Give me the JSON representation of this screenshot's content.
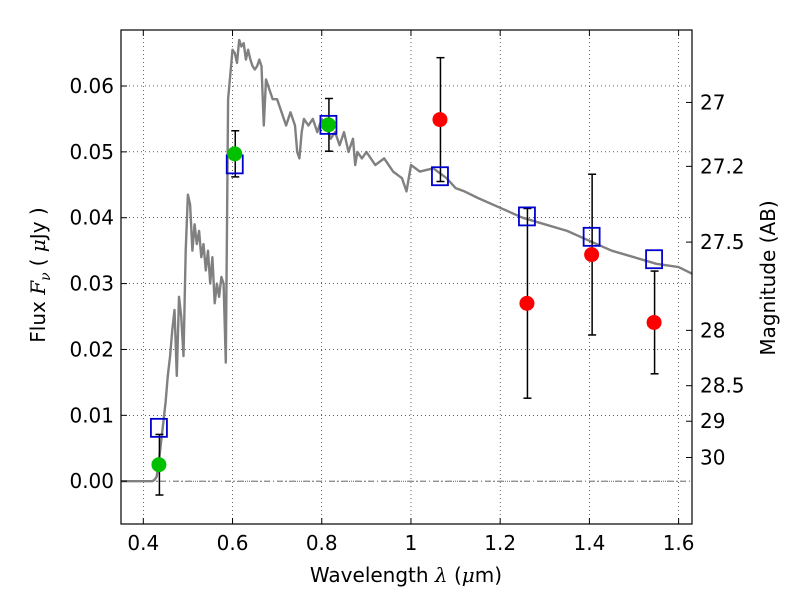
{
  "chart_data": {
    "type": "scatter",
    "title": "",
    "xlabel": {
      "prefix": "Wavelength ",
      "symbol": "λ",
      "unit_open": " (",
      "unit_mu": "μ",
      "unit_rest": "m)"
    },
    "ylabel": {
      "prefix": "Flux ",
      "symbol": "F",
      "sub": "ν",
      "unit_open": "( ",
      "unit_mu": "μ",
      "unit_rest": "Jy )"
    },
    "ylabel_right": "Magnitude (AB)",
    "xlim": [
      0.35,
      1.63
    ],
    "ylim": [
      -0.0065,
      0.0685
    ],
    "xticks": [
      0.4,
      0.6,
      0.8,
      1.0,
      1.2,
      1.4,
      1.6
    ],
    "xtick_labels": [
      "0.4",
      "0.6",
      "0.8",
      "1",
      "1.2",
      "1.4",
      "1.6"
    ],
    "yticks": [
      0.0,
      0.01,
      0.02,
      0.03,
      0.04,
      0.05,
      0.06
    ],
    "ytick_labels": [
      "0.00",
      "0.01",
      "0.02",
      "0.03",
      "0.04",
      "0.05",
      "0.06"
    ],
    "right_ticks": [
      {
        "label": "27",
        "flux": 0.0575
      },
      {
        "label": "27.2",
        "flux": 0.0478
      },
      {
        "label": "27.5",
        "flux": 0.0363
      },
      {
        "label": "28",
        "flux": 0.0229
      },
      {
        "label": "28.5",
        "flux": 0.0145
      },
      {
        "label": "29",
        "flux": 0.0091
      },
      {
        "label": "30",
        "flux": 0.0036
      }
    ],
    "grid": true,
    "model_spectrum": {
      "color": "#808080",
      "x": [
        0.35,
        0.42,
        0.425,
        0.43,
        0.435,
        0.44,
        0.445,
        0.45,
        0.455,
        0.46,
        0.465,
        0.47,
        0.475,
        0.48,
        0.485,
        0.49,
        0.495,
        0.5,
        0.505,
        0.51,
        0.515,
        0.52,
        0.525,
        0.53,
        0.535,
        0.54,
        0.545,
        0.55,
        0.555,
        0.56,
        0.565,
        0.57,
        0.575,
        0.58,
        0.585,
        0.59,
        0.6,
        0.605,
        0.61,
        0.615,
        0.62,
        0.625,
        0.63,
        0.635,
        0.64,
        0.645,
        0.65,
        0.655,
        0.66,
        0.665,
        0.67,
        0.675,
        0.68,
        0.69,
        0.7,
        0.71,
        0.72,
        0.73,
        0.74,
        0.745,
        0.75,
        0.755,
        0.76,
        0.77,
        0.78,
        0.79,
        0.8,
        0.81,
        0.82,
        0.83,
        0.84,
        0.85,
        0.86,
        0.87,
        0.875,
        0.88,
        0.89,
        0.9,
        0.92,
        0.94,
        0.96,
        0.98,
        0.99,
        1.0,
        1.02,
        1.05,
        1.08,
        1.1,
        1.12,
        1.15,
        1.2,
        1.25,
        1.3,
        1.35,
        1.4,
        1.45,
        1.5,
        1.55,
        1.6,
        1.63
      ],
      "y": [
        0.0,
        0.0,
        0.0002,
        0.0007,
        0.003,
        0.006,
        0.009,
        0.012,
        0.016,
        0.019,
        0.023,
        0.026,
        0.016,
        0.028,
        0.025,
        0.019,
        0.035,
        0.0435,
        0.042,
        0.035,
        0.039,
        0.036,
        0.038,
        0.034,
        0.036,
        0.032,
        0.035,
        0.03,
        0.034,
        0.027,
        0.03,
        0.028,
        0.031,
        0.03,
        0.018,
        0.058,
        0.0655,
        0.065,
        0.0635,
        0.067,
        0.066,
        0.0665,
        0.064,
        0.0655,
        0.064,
        0.063,
        0.0625,
        0.063,
        0.064,
        0.063,
        0.054,
        0.061,
        0.06,
        0.058,
        0.058,
        0.056,
        0.054,
        0.056,
        0.054,
        0.05,
        0.049,
        0.053,
        0.055,
        0.054,
        0.055,
        0.053,
        0.055,
        0.054,
        0.052,
        0.053,
        0.051,
        0.053,
        0.05,
        0.052,
        0.048,
        0.05,
        0.049,
        0.05,
        0.048,
        0.049,
        0.047,
        0.046,
        0.044,
        0.048,
        0.047,
        0.0475,
        0.046,
        0.0445,
        0.044,
        0.043,
        0.0415,
        0.04,
        0.039,
        0.038,
        0.0365,
        0.035,
        0.034,
        0.033,
        0.0325,
        0.0315
      ]
    },
    "photometry_detected": {
      "color": "#00c000",
      "points": [
        {
          "x": 0.435,
          "y": 0.0025,
          "yerr": 0.0046
        },
        {
          "x": 0.605,
          "y": 0.0497,
          "yerr": 0.0035
        },
        {
          "x": 0.815,
          "y": 0.0541,
          "yerr": 0.004
        }
      ]
    },
    "photometry_other": {
      "color": "#ff0000",
      "points": [
        {
          "x": 1.065,
          "y": 0.0549,
          "yerr": 0.0094
        },
        {
          "x": 1.26,
          "y": 0.027,
          "yerr": 0.0144
        },
        {
          "x": 1.405,
          "y": 0.0344,
          "yerr": 0.0122
        },
        {
          "x": 1.545,
          "y": 0.0241,
          "yerr": 0.0078
        }
      ]
    },
    "model_photometry": {
      "color": "#0000cc",
      "marker": "open-square",
      "points": [
        {
          "x": 0.435,
          "y": 0.0081
        },
        {
          "x": 0.605,
          "y": 0.0481
        },
        {
          "x": 0.815,
          "y": 0.0541
        },
        {
          "x": 1.065,
          "y": 0.0463
        },
        {
          "x": 1.26,
          "y": 0.0402
        },
        {
          "x": 1.405,
          "y": 0.0371
        },
        {
          "x": 1.545,
          "y": 0.0337
        }
      ]
    }
  }
}
